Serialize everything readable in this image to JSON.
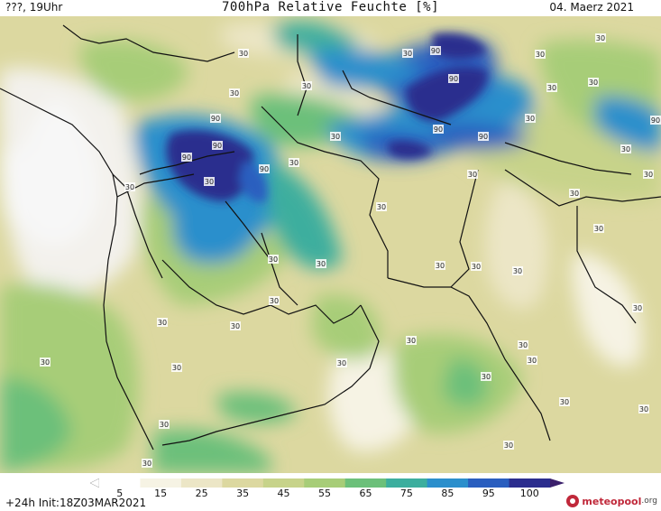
{
  "header": {
    "valid_time": "???, 19Uhr",
    "title": "700hPa Relative Feuchte [%]",
    "date": "04. Maerz 2021"
  },
  "colorbar": {
    "labels": [
      "5",
      "15",
      "25",
      "35",
      "45",
      "55",
      "65",
      "75",
      "85",
      "95",
      "100"
    ],
    "colors": [
      "#ffffff",
      "#f6f3e4",
      "#ece6c6",
      "#dcd8a0",
      "#c7d38a",
      "#a7cd78",
      "#6cc07a",
      "#3cae9e",
      "#2b8fcc",
      "#2a5ebf",
      "#2b2d8e",
      "#3a1f6b"
    ]
  },
  "footer": {
    "init": "+24h Init:18Z03MAR2021",
    "logo_main": "meteopool",
    "logo_suffix": ".org"
  },
  "contour_labels": {
    "high": "90",
    "low": "30"
  }
}
